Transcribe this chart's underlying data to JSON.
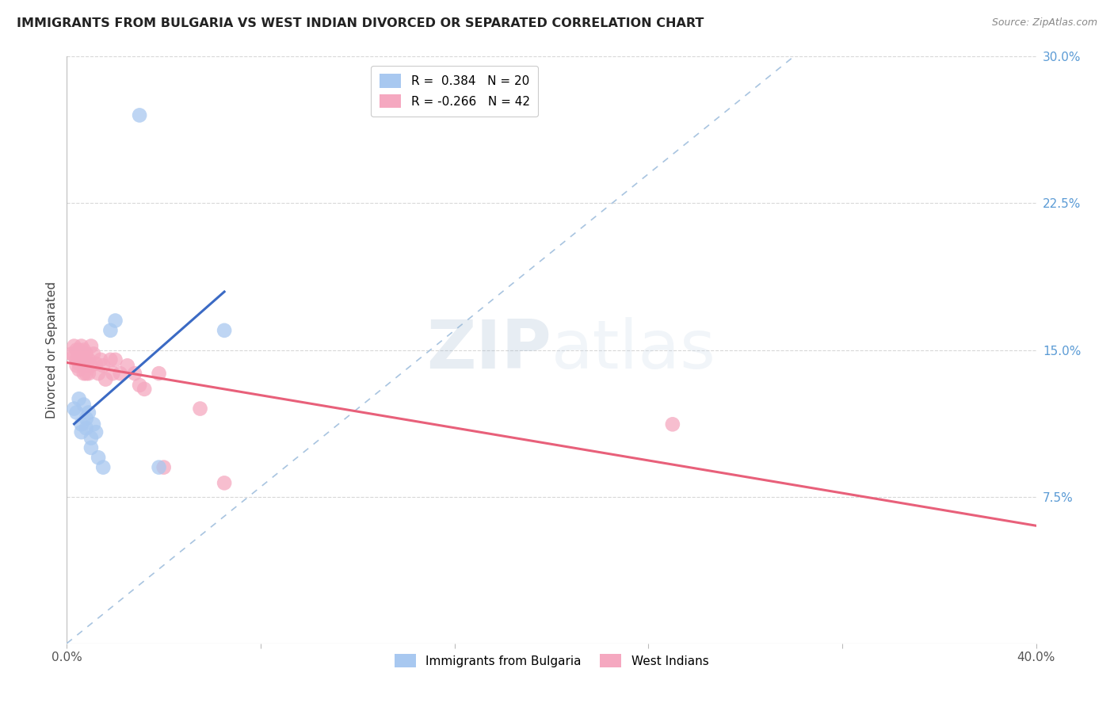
{
  "title": "IMMIGRANTS FROM BULGARIA VS WEST INDIAN DIVORCED OR SEPARATED CORRELATION CHART",
  "source": "Source: ZipAtlas.com",
  "ylabel": "Divorced or Separated",
  "xlim": [
    0.0,
    0.4
  ],
  "ylim": [
    0.0,
    0.3
  ],
  "yticks": [
    0.075,
    0.15,
    0.225,
    0.3
  ],
  "ytick_labels": [
    "7.5%",
    "15.0%",
    "22.5%",
    "30.0%"
  ],
  "legend_entry_blue": "R =  0.384   N = 20",
  "legend_entry_pink": "R = -0.266   N = 42",
  "bulgaria_color": "#a8c8f0",
  "westindian_color": "#f5a8c0",
  "bulgaria_line_color": "#3b6ac4",
  "westindian_line_color": "#e8607a",
  "diagonal_color": "#a8c4e0",
  "background_color": "#ffffff",
  "grid_color": "#d8d8d8",
  "title_color": "#222222",
  "source_color": "#888888",
  "ytick_color": "#5b9bd5",
  "watermark_zip": "ZIP",
  "watermark_atlas": "atlas",
  "bulgaria_points": [
    [
      0.003,
      0.12
    ],
    [
      0.004,
      0.118
    ],
    [
      0.005,
      0.125
    ],
    [
      0.006,
      0.112
    ],
    [
      0.006,
      0.108
    ],
    [
      0.007,
      0.122
    ],
    [
      0.008,
      0.115
    ],
    [
      0.008,
      0.11
    ],
    [
      0.009,
      0.118
    ],
    [
      0.01,
      0.105
    ],
    [
      0.01,
      0.1
    ],
    [
      0.011,
      0.112
    ],
    [
      0.012,
      0.108
    ],
    [
      0.013,
      0.095
    ],
    [
      0.015,
      0.09
    ],
    [
      0.018,
      0.16
    ],
    [
      0.02,
      0.165
    ],
    [
      0.038,
      0.09
    ],
    [
      0.065,
      0.16
    ],
    [
      0.03,
      0.27
    ]
  ],
  "westindian_points": [
    [
      0.002,
      0.148
    ],
    [
      0.003,
      0.152
    ],
    [
      0.003,
      0.147
    ],
    [
      0.004,
      0.15
    ],
    [
      0.004,
      0.145
    ],
    [
      0.004,
      0.142
    ],
    [
      0.005,
      0.15
    ],
    [
      0.005,
      0.147
    ],
    [
      0.005,
      0.143
    ],
    [
      0.005,
      0.14
    ],
    [
      0.006,
      0.152
    ],
    [
      0.006,
      0.148
    ],
    [
      0.006,
      0.145
    ],
    [
      0.007,
      0.15
    ],
    [
      0.007,
      0.145
    ],
    [
      0.007,
      0.138
    ],
    [
      0.008,
      0.148
    ],
    [
      0.008,
      0.143
    ],
    [
      0.008,
      0.138
    ],
    [
      0.009,
      0.145
    ],
    [
      0.009,
      0.138
    ],
    [
      0.01,
      0.152
    ],
    [
      0.01,
      0.142
    ],
    [
      0.011,
      0.148
    ],
    [
      0.012,
      0.143
    ],
    [
      0.013,
      0.138
    ],
    [
      0.014,
      0.145
    ],
    [
      0.015,
      0.142
    ],
    [
      0.016,
      0.135
    ],
    [
      0.018,
      0.145
    ],
    [
      0.019,
      0.138
    ],
    [
      0.02,
      0.145
    ],
    [
      0.022,
      0.138
    ],
    [
      0.025,
      0.142
    ],
    [
      0.028,
      0.138
    ],
    [
      0.03,
      0.132
    ],
    [
      0.032,
      0.13
    ],
    [
      0.038,
      0.138
    ],
    [
      0.04,
      0.09
    ],
    [
      0.055,
      0.12
    ],
    [
      0.25,
      0.112
    ],
    [
      0.065,
      0.082
    ]
  ]
}
